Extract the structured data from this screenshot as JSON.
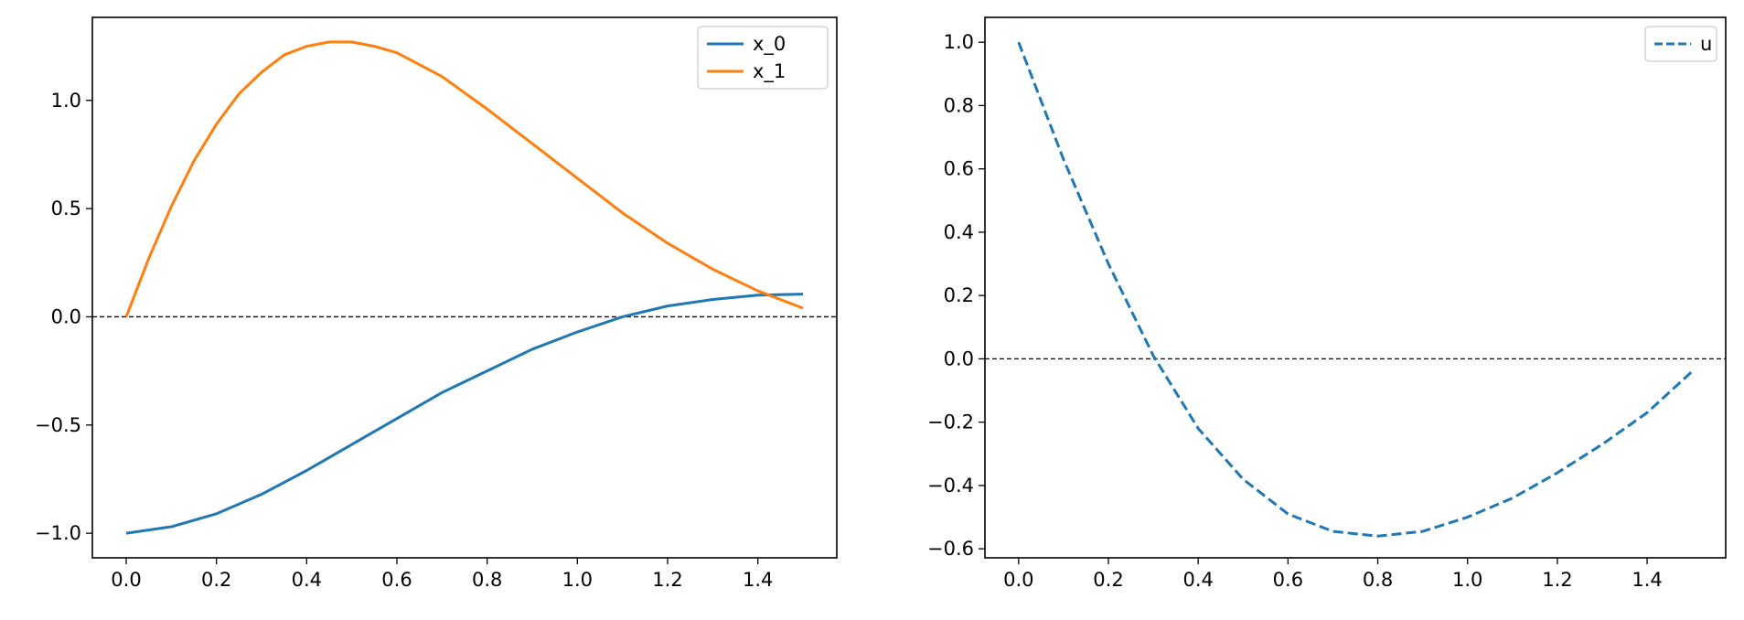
{
  "colors": {
    "x_0": "#1f77b4",
    "x_1": "#ff7f0e",
    "u": "#1f77b4",
    "zero_line": "#000000"
  },
  "chart_data": [
    {
      "type": "line",
      "xlim": [
        -0.075,
        1.575
      ],
      "ylim": [
        -1.1135,
        1.3835
      ],
      "xticks": [
        0.0,
        0.2,
        0.4,
        0.6,
        0.8,
        1.0,
        1.2,
        1.4
      ],
      "xtick_labels": [
        "0.0",
        "0.2",
        "0.4",
        "0.6",
        "0.8",
        "1.0",
        "1.2",
        "1.4"
      ],
      "yticks": [
        -1.0,
        -0.5,
        0.0,
        0.5,
        1.0
      ],
      "ytick_labels": [
        "−1.0",
        "−0.5",
        "0.0",
        "0.5",
        "1.0"
      ],
      "grid": false,
      "legend_position": "top-right",
      "reference_line": {
        "y": 0.0,
        "style": "dashed"
      },
      "series": [
        {
          "name": "x_0",
          "style": "solid",
          "x": [
            0.0,
            0.1,
            0.2,
            0.3,
            0.4,
            0.5,
            0.6,
            0.7,
            0.8,
            0.9,
            1.0,
            1.1,
            1.2,
            1.3,
            1.4,
            1.5
          ],
          "y": [
            -1.0,
            -0.97,
            -0.91,
            -0.82,
            -0.71,
            -0.59,
            -0.47,
            -0.35,
            -0.25,
            -0.15,
            -0.07,
            0.0,
            0.05,
            0.08,
            0.1,
            0.105
          ]
        },
        {
          "name": "x_1",
          "style": "solid",
          "x": [
            0.0,
            0.05,
            0.1,
            0.15,
            0.2,
            0.25,
            0.3,
            0.35,
            0.4,
            0.45,
            0.5,
            0.55,
            0.6,
            0.7,
            0.8,
            0.9,
            1.0,
            1.1,
            1.2,
            1.3,
            1.4,
            1.5
          ],
          "y": [
            0.0,
            0.27,
            0.51,
            0.72,
            0.89,
            1.03,
            1.13,
            1.21,
            1.25,
            1.27,
            1.27,
            1.25,
            1.22,
            1.11,
            0.96,
            0.8,
            0.64,
            0.48,
            0.34,
            0.22,
            0.12,
            0.04
          ]
        }
      ]
    },
    {
      "type": "line",
      "xlim": [
        -0.075,
        1.575
      ],
      "ylim": [
        -0.6285,
        1.0785
      ],
      "xticks": [
        0.0,
        0.2,
        0.4,
        0.6,
        0.8,
        1.0,
        1.2,
        1.4
      ],
      "xtick_labels": [
        "0.0",
        "0.2",
        "0.4",
        "0.6",
        "0.8",
        "1.0",
        "1.2",
        "1.4"
      ],
      "yticks": [
        -0.6,
        -0.4,
        -0.2,
        0.0,
        0.2,
        0.4,
        0.6,
        0.8,
        1.0
      ],
      "ytick_labels": [
        "−0.6",
        "−0.4",
        "−0.2",
        "0.0",
        "0.2",
        "0.4",
        "0.6",
        "0.8",
        "1.0"
      ],
      "grid": false,
      "legend_position": "top-right",
      "reference_line": {
        "y": 0.0,
        "style": "dashed"
      },
      "series": [
        {
          "name": "u",
          "style": "dashed",
          "x": [
            0.0,
            0.1,
            0.2,
            0.3,
            0.4,
            0.5,
            0.6,
            0.7,
            0.8,
            0.9,
            1.0,
            1.1,
            1.2,
            1.3,
            1.4,
            1.5
          ],
          "y": [
            1.0,
            0.63,
            0.3,
            0.01,
            -0.22,
            -0.38,
            -0.49,
            -0.545,
            -0.56,
            -0.545,
            -0.5,
            -0.44,
            -0.36,
            -0.27,
            -0.17,
            -0.04
          ]
        }
      ]
    }
  ]
}
